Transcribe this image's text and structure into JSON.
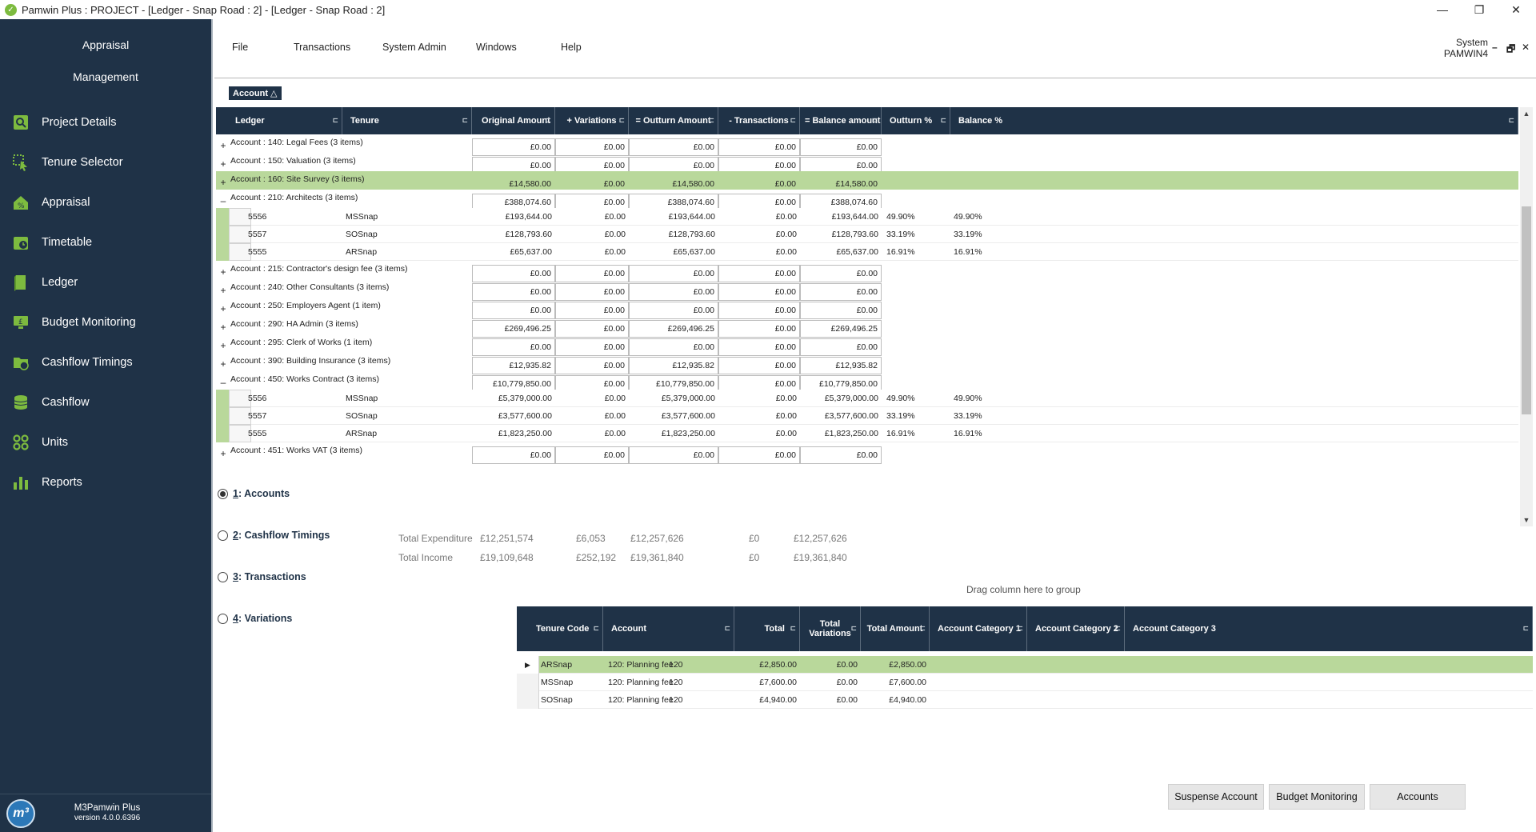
{
  "window": {
    "title": "Pamwin Plus : PROJECT - [Ledger - Snap Road : 2] - [Ledger - Snap Road : 2]",
    "minimize": "—",
    "restore": "❐",
    "close": "✕"
  },
  "sidebar": {
    "brand_line1": "Appraisal",
    "brand_line2": "Management",
    "items": [
      {
        "label": "Project Details",
        "icon": "project-details-icon"
      },
      {
        "label": "Tenure Selector",
        "icon": "tenure-selector-icon"
      },
      {
        "label": "Appraisal",
        "icon": "appraisal-icon"
      },
      {
        "label": "Timetable",
        "icon": "timetable-icon"
      },
      {
        "label": "Ledger",
        "icon": "ledger-icon"
      },
      {
        "label": "Budget Monitoring",
        "icon": "budget-monitoring-icon"
      },
      {
        "label": "Cashflow Timings",
        "icon": "cashflow-timings-icon"
      },
      {
        "label": "Cashflow",
        "icon": "cashflow-icon"
      },
      {
        "label": "Units",
        "icon": "units-icon"
      },
      {
        "label": "Reports",
        "icon": "reports-icon"
      }
    ],
    "footer_app": "M3Pamwin Plus",
    "footer_version": "version 4.0.0.6396",
    "logo_text": "m³"
  },
  "menubar": {
    "file": "File",
    "transactions": "Transactions",
    "system_admin": "System Admin",
    "windows": "Windows",
    "help": "Help",
    "system_line1": "System",
    "system_line2": "PAMWIN4",
    "mdi_min": "–",
    "mdi_restore": "🗗",
    "mdi_close": "✕"
  },
  "group_chip": "Account △",
  "grid": {
    "columns": [
      "Ledger",
      "Tenure",
      "Original Amount",
      "+ Variations",
      "= Outturn Amount",
      "- Transactions",
      "= Balance amount",
      "Outturn %",
      "Balance %"
    ],
    "rows": [
      {
        "type": "group",
        "toggle": "+",
        "label": "Account : 140: Legal Fees (3 items)",
        "values": [
          "£0.00",
          "£0.00",
          "£0.00",
          "£0.00",
          "£0.00"
        ]
      },
      {
        "type": "group",
        "toggle": "+",
        "label": "Account : 150: Valuation (3 items)",
        "values": [
          "£0.00",
          "£0.00",
          "£0.00",
          "£0.00",
          "£0.00"
        ]
      },
      {
        "type": "group",
        "toggle": "+",
        "label": "Account : 160: Site Survey (3 items)",
        "values": [
          "£14,580.00",
          "£0.00",
          "£14,580.00",
          "£0.00",
          "£14,580.00"
        ],
        "selected": true
      },
      {
        "type": "group",
        "toggle": "–",
        "label": "Account : 210: Architects (3 items)",
        "values": [
          "£388,074.60",
          "£0.00",
          "£388,074.60",
          "£0.00",
          "£388,074.60"
        ]
      },
      {
        "type": "detail",
        "ledger": "5556",
        "tenure": "MSSnap",
        "values": [
          "£193,644.00",
          "£0.00",
          "£193,644.00",
          "£0.00",
          "£193,644.00"
        ],
        "outturn": "49.90%",
        "balance": "49.90%"
      },
      {
        "type": "detail",
        "ledger": "5557",
        "tenure": "SOSnap",
        "values": [
          "£128,793.60",
          "£0.00",
          "£128,793.60",
          "£0.00",
          "£128,793.60"
        ],
        "outturn": "33.19%",
        "balance": "33.19%"
      },
      {
        "type": "detail",
        "ledger": "5555",
        "tenure": "ARSnap",
        "values": [
          "£65,637.00",
          "£0.00",
          "£65,637.00",
          "£0.00",
          "£65,637.00"
        ],
        "outturn": "16.91%",
        "balance": "16.91%"
      },
      {
        "type": "group",
        "toggle": "+",
        "label": "Account : 215: Contractor's design fee (3 items)",
        "values": [
          "£0.00",
          "£0.00",
          "£0.00",
          "£0.00",
          "£0.00"
        ]
      },
      {
        "type": "group",
        "toggle": "+",
        "label": "Account : 240: Other Consultants (3 items)",
        "values": [
          "£0.00",
          "£0.00",
          "£0.00",
          "£0.00",
          "£0.00"
        ]
      },
      {
        "type": "group",
        "toggle": "+",
        "label": "Account : 250: Employers Agent (1 item)",
        "values": [
          "£0.00",
          "£0.00",
          "£0.00",
          "£0.00",
          "£0.00"
        ]
      },
      {
        "type": "group",
        "toggle": "+",
        "label": "Account : 290: HA Admin (3 items)",
        "values": [
          "£269,496.25",
          "£0.00",
          "£269,496.25",
          "£0.00",
          "£269,496.25"
        ]
      },
      {
        "type": "group",
        "toggle": "+",
        "label": "Account : 295: Clerk of Works (1 item)",
        "values": [
          "£0.00",
          "£0.00",
          "£0.00",
          "£0.00",
          "£0.00"
        ]
      },
      {
        "type": "group",
        "toggle": "+",
        "label": "Account : 390: Building Insurance (3 items)",
        "values": [
          "£12,935.82",
          "£0.00",
          "£12,935.82",
          "£0.00",
          "£12,935.82"
        ]
      },
      {
        "type": "group",
        "toggle": "–",
        "label": "Account : 450: Works Contract (3 items)",
        "values": [
          "£10,779,850.00",
          "£0.00",
          "£10,779,850.00",
          "£0.00",
          "£10,779,850.00"
        ]
      },
      {
        "type": "detail",
        "ledger": "5556",
        "tenure": "MSSnap",
        "values": [
          "£5,379,000.00",
          "£0.00",
          "£5,379,000.00",
          "£0.00",
          "£5,379,000.00"
        ],
        "outturn": "49.90%",
        "balance": "49.90%"
      },
      {
        "type": "detail",
        "ledger": "5557",
        "tenure": "SOSnap",
        "values": [
          "£3,577,600.00",
          "£0.00",
          "£3,577,600.00",
          "£0.00",
          "£3,577,600.00"
        ],
        "outturn": "33.19%",
        "balance": "33.19%"
      },
      {
        "type": "detail",
        "ledger": "5555",
        "tenure": "ARSnap",
        "values": [
          "£1,823,250.00",
          "£0.00",
          "£1,823,250.00",
          "£0.00",
          "£1,823,250.00"
        ],
        "outturn": "16.91%",
        "balance": "16.91%"
      },
      {
        "type": "group",
        "toggle": "+",
        "label": "Account : 451: Works VAT (3 items)",
        "values": [
          "£0.00",
          "£0.00",
          "£0.00",
          "£0.00",
          "£0.00"
        ]
      }
    ],
    "scroll_up": "▲",
    "scroll_down": "▼"
  },
  "totals": {
    "expenditure_label": "Total Expenditure",
    "expenditure": [
      "£12,251,574",
      "£6,053",
      "£12,257,626",
      "£0",
      "£12,257,626"
    ],
    "income_label": "Total Income",
    "income": [
      "£19,109,648",
      "£252,192",
      "£19,361,840",
      "£0",
      "£19,361,840"
    ]
  },
  "views": [
    {
      "key": "1",
      "label": ": Accounts",
      "checked": true
    },
    {
      "key": "2",
      "label": ": Cashflow Timings",
      "checked": false
    },
    {
      "key": "3",
      "label": ": Transactions",
      "checked": false
    },
    {
      "key": "4",
      "label": ": Variations",
      "checked": false
    }
  ],
  "lower": {
    "drag_hint": "Drag column here to group",
    "columns": [
      "Tenure Code",
      "Account",
      "Total",
      "Total Variations",
      "Total Amount",
      "Account Category 1",
      "Account Category 2",
      "Account Category 3"
    ],
    "rows": [
      {
        "tenure": "ARSnap",
        "account": "120: Planning fee",
        "code": "120",
        "total": "£2,850.00",
        "variations": "£0.00",
        "amount": "£2,850.00",
        "selected": true
      },
      {
        "tenure": "MSSnap",
        "account": "120: Planning fee",
        "code": "120",
        "total": "£7,600.00",
        "variations": "£0.00",
        "amount": "£7,600.00"
      },
      {
        "tenure": "SOSnap",
        "account": "120: Planning fee",
        "code": "120",
        "total": "£4,940.00",
        "variations": "£0.00",
        "amount": "£4,940.00"
      }
    ],
    "row_pointer": "▶"
  },
  "buttons": {
    "suspense": "Suspense Account",
    "budget": "Budget Monitoring",
    "accounts": "Accounts"
  },
  "colors": {
    "sidebar": "#1f3247",
    "header": "#1f3247",
    "selection": "#b9d89b",
    "accent": "#7dbb3f"
  }
}
